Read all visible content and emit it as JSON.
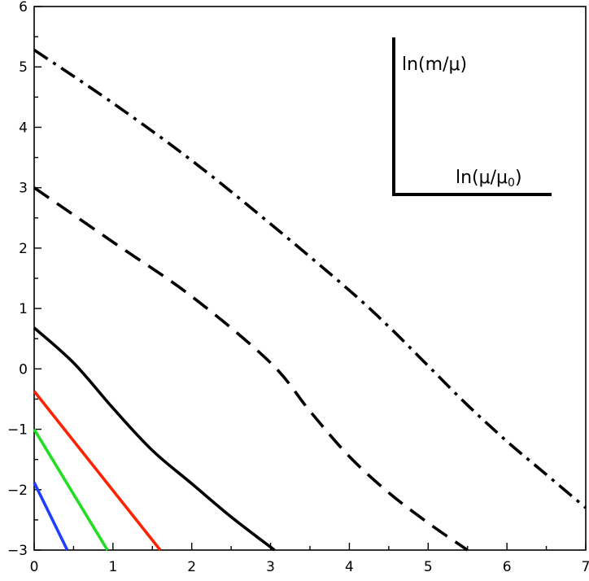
{
  "chart_data": {
    "type": "line",
    "title": "",
    "xlabel": "",
    "ylabel": "",
    "xlim": [
      0,
      7
    ],
    "ylim": [
      -3,
      6
    ],
    "x_ticks": [
      0,
      1,
      2,
      3,
      4,
      5,
      6,
      7
    ],
    "y_ticks": [
      -3,
      -2,
      -1,
      0,
      1,
      2,
      3,
      4,
      5,
      6
    ],
    "x_tick_labels": [
      "0",
      "1",
      "2",
      "3",
      "4",
      "5",
      "6",
      "7"
    ],
    "y_tick_labels": [
      "−3",
      "−2",
      "−1",
      "0",
      "1",
      "2",
      "3",
      "4",
      "5",
      "6"
    ],
    "grid": false,
    "legend": "none",
    "inset_axes_labels": {
      "vertical": "ln(m/μ)",
      "horizontal_main": "ln(μ/μ",
      "horizontal_sub": "0",
      "horizontal_close": ")"
    },
    "series": [
      {
        "color": "#1f3fff",
        "dash": "solid",
        "points": [
          [
            0,
            -1.88
          ],
          [
            0.42,
            -3.0
          ]
        ]
      },
      {
        "color": "#22dd22",
        "dash": "solid",
        "points": [
          [
            0,
            -1.0
          ],
          [
            0.93,
            -3.0
          ]
        ]
      },
      {
        "color": "#ff2200",
        "dash": "solid",
        "points": [
          [
            0,
            -0.37
          ],
          [
            1.6,
            -3.0
          ]
        ]
      },
      {
        "color": "#000000",
        "dash": "solid",
        "points": [
          [
            0,
            0.68
          ],
          [
            0.5,
            0.1
          ],
          [
            1.0,
            -0.65
          ],
          [
            1.5,
            -1.35
          ],
          [
            2.0,
            -1.9
          ],
          [
            2.5,
            -2.45
          ],
          [
            3.05,
            -3.0
          ]
        ]
      },
      {
        "color": "#000000",
        "dash": "dash",
        "points": [
          [
            0,
            3.0
          ],
          [
            1.0,
            2.1
          ],
          [
            2.0,
            1.2
          ],
          [
            3.0,
            0.1
          ],
          [
            3.5,
            -0.7
          ],
          [
            4.0,
            -1.45
          ],
          [
            4.5,
            -2.05
          ],
          [
            5.0,
            -2.55
          ],
          [
            5.5,
            -3.0
          ]
        ]
      },
      {
        "color": "#000000",
        "dash": "dashdot",
        "points": [
          [
            0,
            5.28
          ],
          [
            1.0,
            4.4
          ],
          [
            2.0,
            3.45
          ],
          [
            3.0,
            2.4
          ],
          [
            4.0,
            1.3
          ],
          [
            4.5,
            0.7
          ],
          [
            5.0,
            0.05
          ],
          [
            5.5,
            -0.6
          ],
          [
            6.0,
            -1.2
          ],
          [
            6.5,
            -1.75
          ],
          [
            7.0,
            -2.3
          ]
        ]
      }
    ]
  }
}
